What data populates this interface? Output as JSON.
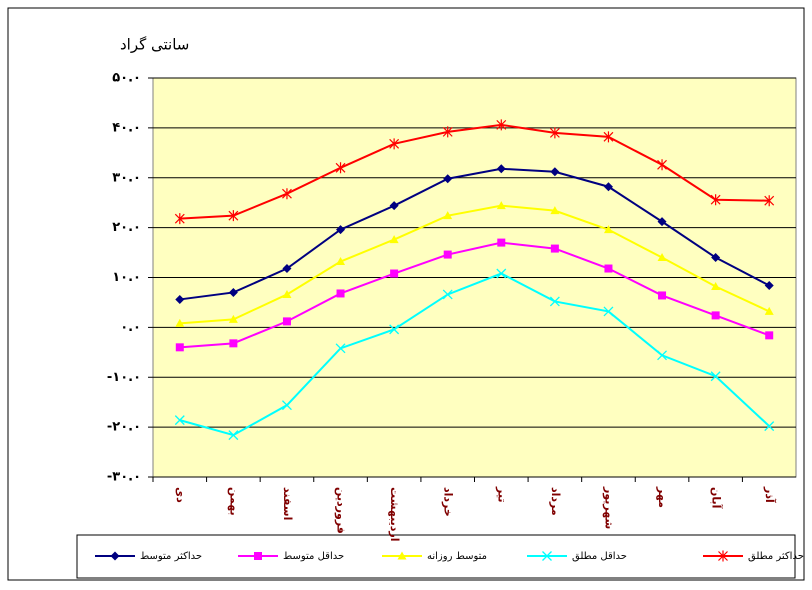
{
  "chart_data": {
    "type": "line",
    "title": "سانتی گراد",
    "categories": [
      "دی",
      "بهمن",
      "اسفند",
      "فروردین",
      "اردیبهشت",
      "خرداد",
      "تیر",
      "مرداد",
      "شهریور",
      "مهر",
      "آبان",
      "آذر"
    ],
    "series": [
      {
        "name": "حداکثر متوسط",
        "color": "#000080",
        "marker": "diamond",
        "values": [
          5.6,
          7.0,
          11.8,
          19.6,
          24.4,
          29.8,
          31.8,
          31.2,
          28.2,
          21.2,
          14.0,
          8.4
        ]
      },
      {
        "name": "حداقل متوسط",
        "color": "#ff00ff",
        "marker": "square",
        "values": [
          -4.0,
          -3.2,
          1.2,
          6.8,
          10.8,
          14.6,
          17.0,
          15.8,
          11.8,
          6.4,
          2.4,
          -1.6
        ]
      },
      {
        "name": "متوسط روزانه",
        "color": "#ffff00",
        "marker": "triangle",
        "values": [
          0.8,
          1.6,
          6.6,
          13.2,
          17.6,
          22.4,
          24.4,
          23.4,
          19.6,
          14.0,
          8.2,
          3.2
        ]
      },
      {
        "name": "حداقل مطلق",
        "color": "#00ffff",
        "marker": "x",
        "values": [
          -18.6,
          -21.6,
          -15.6,
          -4.2,
          -0.4,
          6.6,
          10.8,
          5.2,
          3.2,
          -5.6,
          -9.8,
          -19.8
        ]
      },
      {
        "name": "حداکثر مطلق",
        "color": "#ff0000",
        "marker": "star",
        "values": [
          21.8,
          22.4,
          26.8,
          32.0,
          36.8,
          39.2,
          40.6,
          39.0,
          38.2,
          32.6,
          25.6,
          25.4
        ]
      }
    ],
    "ylim": [
      -30,
      50
    ],
    "yticks": [
      {
        "value": 50,
        "label": "۵۰.۰"
      },
      {
        "value": 40,
        "label": "۴۰.۰"
      },
      {
        "value": 30,
        "label": "۳۰.۰"
      },
      {
        "value": 20,
        "label": "۲۰.۰"
      },
      {
        "value": 10,
        "label": "۱۰.۰"
      },
      {
        "value": 0,
        "label": "۰.۰"
      },
      {
        "value": -10,
        "label": "-۱۰.۰"
      },
      {
        "value": -20,
        "label": "-۲۰.۰"
      },
      {
        "value": -30,
        "label": "-۳۰.۰"
      }
    ],
    "grid": true,
    "legend": "bottom"
  }
}
